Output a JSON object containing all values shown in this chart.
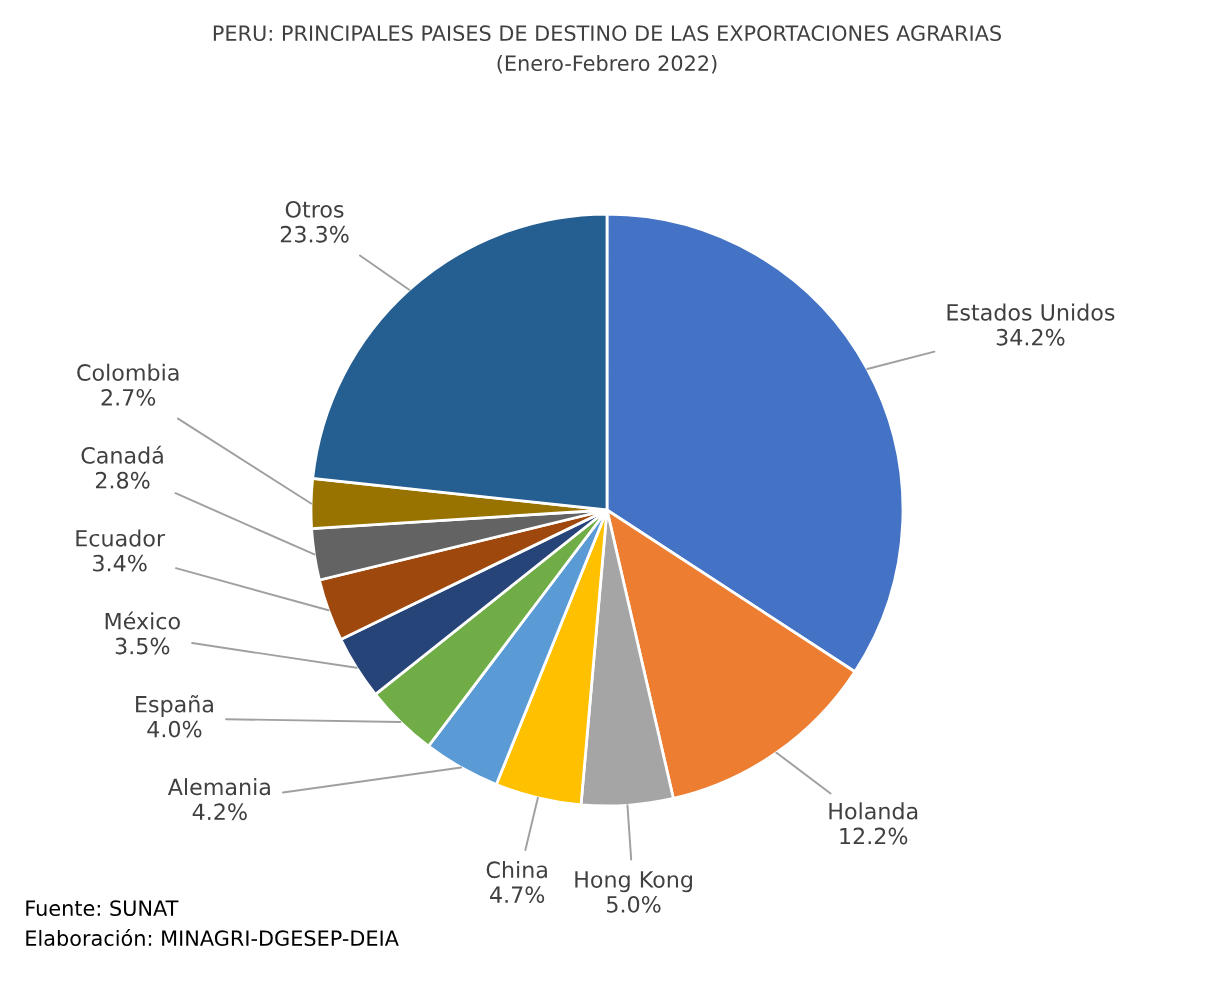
{
  "chart_data": {
    "type": "pie",
    "title": "PERU: PRINCIPALES PAISES DE DESTINO DE LAS EXPORTACIONES AGRARIAS",
    "subtitle": "(Enero-Febrero 2022)",
    "categories": [
      "Estados Unidos",
      "Holanda",
      "Hong Kong",
      "China",
      "Alemania",
      "España",
      "México",
      "Ecuador",
      "Canadá",
      "Colombia",
      "Otros"
    ],
    "values": [
      34.2,
      12.2,
      5.0,
      4.7,
      4.2,
      4.0,
      3.5,
      3.4,
      2.8,
      2.7,
      23.3
    ],
    "value_labels": [
      "34.2%",
      "12.2%",
      "5.0%",
      "4.7%",
      "4.2%",
      "4.0%",
      "3.5%",
      "3.4%",
      "2.8%",
      "2.7%",
      "23.3%"
    ],
    "colors": [
      "#4472c4",
      "#ed7d31",
      "#a5a5a5",
      "#ffc000",
      "#5b9bd5",
      "#70ad47",
      "#264478",
      "#9e480e",
      "#636363",
      "#997300",
      "#255e91"
    ],
    "legend": false,
    "annotations": [
      "Fuente: SUNAT",
      "Elaboración: MINAGRI-DGESEP-DEIA"
    ]
  }
}
